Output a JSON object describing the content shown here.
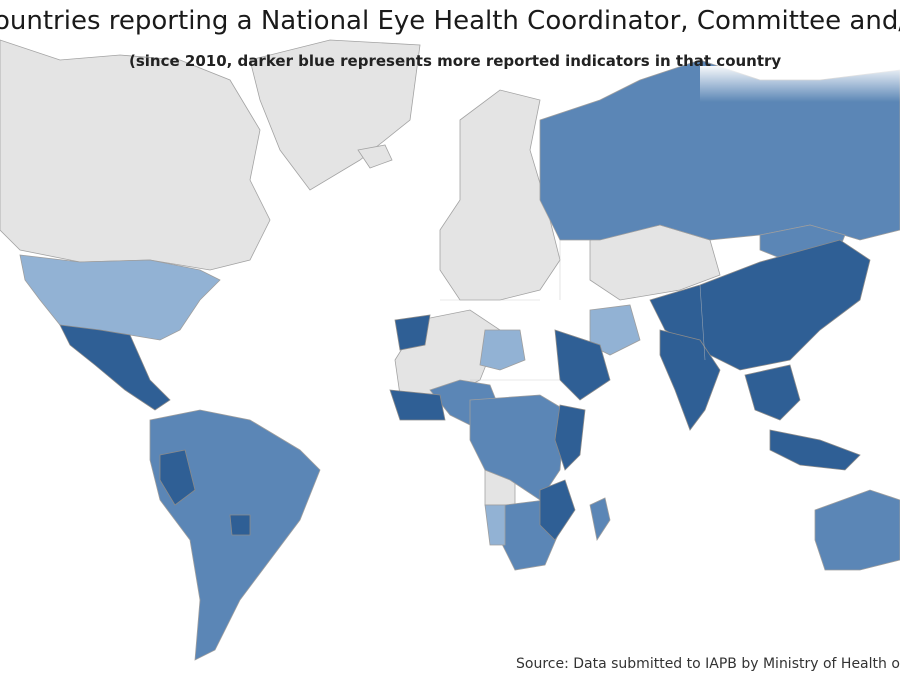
{
  "title": "ountries reporting a National Eye Health Coordinator, Committee and/or P",
  "subtitle": "(since 2010, darker blue represents more reported indicators in that country",
  "source": "Source: Data submitted to IAPB by Ministry of Health or",
  "colors": {
    "ocean": "#ffffff",
    "no_data": "#e4e4e4",
    "border": "#9e9e9e",
    "light_blue": "#92b2d4",
    "medium_blue": "#5b86b6",
    "dark_blue": "#2f5f95"
  }
}
